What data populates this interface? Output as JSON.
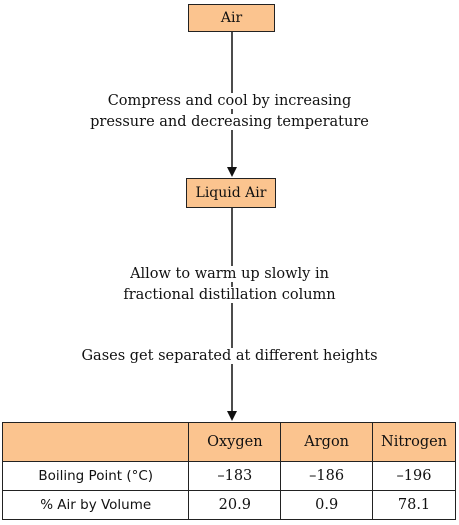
{
  "flow": {
    "start_box": "Air",
    "step1_line1": "Compress and cool by increasing",
    "step1_line2": "pressure and decreasing temperature",
    "middle_box": "Liquid Air",
    "step2_line1": "Allow to warm up slowly in",
    "step2_line2": "fractional distillation column",
    "step3": "Gases get separated at different heights"
  },
  "table": {
    "headers": [
      "",
      "Oxygen",
      "Argon",
      "Nitrogen"
    ],
    "rows": [
      {
        "label": "Boiling Point (°C)",
        "values": [
          "–183",
          "–186",
          "–196"
        ]
      },
      {
        "label": "% Air by Volume",
        "values": [
          "20.9",
          "0.9",
          "78.1"
        ]
      }
    ]
  },
  "colors": {
    "box_fill": "#fbc48f",
    "line": "#111111"
  }
}
